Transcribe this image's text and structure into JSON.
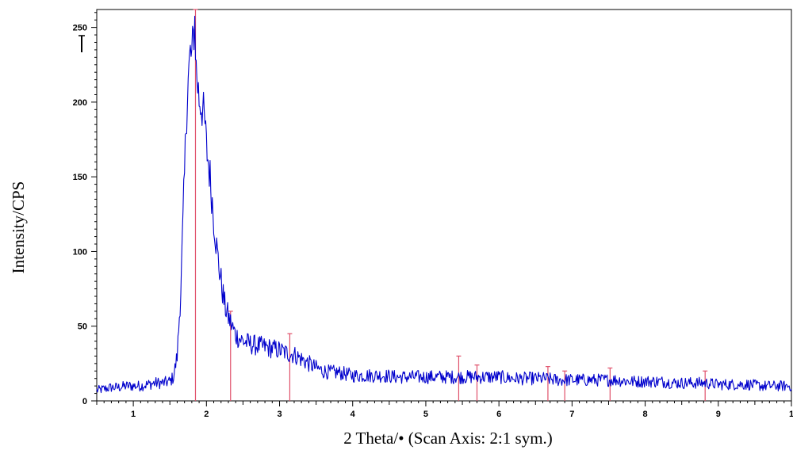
{
  "chart_data": {
    "type": "line",
    "title": "",
    "xlabel": "2 Theta/• (Scan Axis: 2:1 sym.)",
    "ylabel": "Intensity/CPS",
    "xlim": [
      0.5,
      10
    ],
    "ylim": [
      0,
      262
    ],
    "x_ticks": [
      1,
      2,
      3,
      4,
      5,
      6,
      7,
      8,
      9,
      10
    ],
    "x_tick_labels": [
      "1",
      "2",
      "3",
      "4",
      "5",
      "6",
      "7",
      "8",
      "9",
      "1"
    ],
    "y_ticks": [
      0,
      50,
      100,
      150,
      200,
      250
    ],
    "y_tick_labels": [
      "0",
      "50",
      "100",
      "150",
      "200",
      "250"
    ],
    "grid": false,
    "legend": "none",
    "series": [
      {
        "color": "#0000cc",
        "x": [
          0.5,
          0.6,
          0.7,
          0.8,
          0.9,
          1.0,
          1.1,
          1.2,
          1.3,
          1.4,
          1.5,
          1.55,
          1.6,
          1.65,
          1.7,
          1.72,
          1.75,
          1.78,
          1.8,
          1.82,
          1.84,
          1.86,
          1.88,
          1.9,
          1.92,
          1.95,
          1.98,
          2.0,
          2.05,
          2.1,
          2.15,
          2.2,
          2.25,
          2.3,
          2.35,
          2.4,
          2.5,
          2.6,
          2.7,
          2.8,
          2.9,
          3.0,
          3.1,
          3.2,
          3.3,
          3.4,
          3.5,
          3.6,
          3.7,
          3.8,
          3.9,
          4.0,
          4.2,
          4.4,
          4.6,
          4.8,
          5.0,
          5.2,
          5.4,
          5.6,
          5.8,
          6.0,
          6.2,
          6.4,
          6.6,
          6.8,
          7.0,
          7.2,
          7.4,
          7.6,
          7.8,
          8.0,
          8.2,
          8.4,
          8.6,
          8.8,
          9.0,
          9.2,
          9.4,
          9.6,
          9.8,
          10.0
        ],
        "values": [
          7,
          8,
          9,
          9,
          10,
          10,
          10,
          11,
          12,
          12,
          13,
          16,
          30,
          75,
          150,
          185,
          215,
          232,
          230,
          242,
          255,
          222,
          212,
          202,
          200,
          195,
          185,
          170,
          150,
          122,
          98,
          80,
          64,
          56,
          50,
          44,
          40,
          38,
          37,
          36,
          35,
          34,
          32,
          31,
          28,
          25,
          22,
          20,
          19,
          19,
          18,
          17,
          17,
          17,
          16,
          16,
          16,
          16,
          16,
          16,
          16,
          16,
          15,
          15,
          15,
          14,
          14,
          14,
          14,
          14,
          13,
          13,
          13,
          12,
          12,
          12,
          11,
          11,
          11,
          10,
          10,
          10
        ]
      }
    ],
    "reference_lines": {
      "color": "#e0506a",
      "x": [
        1.85,
        2.33,
        3.14,
        5.45,
        5.7,
        6.67,
        6.9,
        7.52,
        8.82
      ],
      "values": [
        262,
        60,
        45,
        30,
        24,
        23,
        20,
        22,
        20
      ]
    }
  }
}
